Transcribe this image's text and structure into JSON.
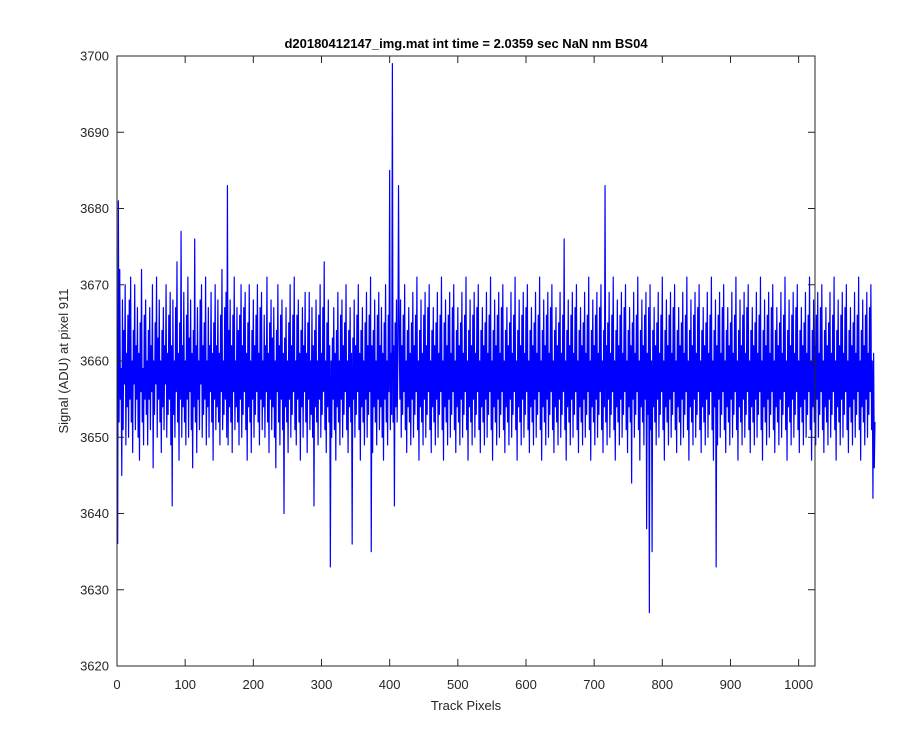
{
  "chart_data": {
    "type": "line",
    "title": "d20180412147_img.mat int time = 2.0359 sec  NaN nm BS04",
    "xlabel": "Track Pixels",
    "ylabel": "Signal (ADU) at pixel 911",
    "xlim": [
      0,
      1024
    ],
    "ylim": [
      3620,
      3700
    ],
    "xticks": [
      0,
      100,
      200,
      300,
      400,
      500,
      600,
      700,
      800,
      900,
      1000
    ],
    "yticks": [
      3620,
      3630,
      3640,
      3650,
      3660,
      3670,
      3680,
      3690,
      3700
    ],
    "grid": false,
    "legend": "none",
    "line_color": "#0000ff",
    "series": [
      {
        "x_start": 1,
        "x_step": 1,
        "values": [
          3636,
          3681,
          3652,
          3672,
          3655,
          3659,
          3645,
          3668,
          3651,
          3664,
          3657,
          3670,
          3649,
          3661,
          3654,
          3666,
          3650,
          3668,
          3655,
          3671,
          3652,
          3660,
          3648,
          3664,
          3657,
          3670,
          3651,
          3662,
          3655,
          3667,
          3650,
          3661,
          3647,
          3665,
          3656,
          3672,
          3652,
          3659,
          3649,
          3666,
          3655,
          3668,
          3653,
          3660,
          3649,
          3664,
          3655,
          3667,
          3651,
          3662,
          3656,
          3670,
          3646,
          3660,
          3653,
          3665,
          3657,
          3671,
          3650,
          3663,
          3655,
          3668,
          3652,
          3660,
          3648,
          3664,
          3654,
          3667,
          3651,
          3662,
          3657,
          3670,
          3650,
          3661,
          3653,
          3666,
          3655,
          3669,
          3649,
          3662,
          3641,
          3668,
          3653,
          3660,
          3650,
          3667,
          3656,
          3673,
          3652,
          3661,
          3647,
          3665,
          3655,
          3677,
          3650,
          3662,
          3654,
          3669,
          3652,
          3660,
          3649,
          3666,
          3655,
          3671,
          3650,
          3663,
          3656,
          3668,
          3651,
          3661,
          3646,
          3664,
          3654,
          3676,
          3652,
          3662,
          3648,
          3667,
          3655,
          3660,
          3651,
          3668,
          3657,
          3670,
          3650,
          3662,
          3653,
          3665,
          3655,
          3671,
          3649,
          3660,
          3654,
          3667,
          3650,
          3662,
          3656,
          3669,
          3652,
          3661,
          3647,
          3665,
          3655,
          3670,
          3651,
          3662,
          3654,
          3668,
          3652,
          3661,
          3649,
          3666,
          3656,
          3672,
          3651,
          3660,
          3653,
          3667,
          3655,
          3669,
          3650,
          3683,
          3649,
          3664,
          3654,
          3668,
          3652,
          3662,
          3648,
          3666,
          3656,
          3671,
          3651,
          3660,
          3654,
          3667,
          3652,
          3664,
          3649,
          3666,
          3655,
          3670,
          3650,
          3662,
          3653,
          3667,
          3656,
          3669,
          3651,
          3661,
          3647,
          3665,
          3654,
          3670,
          3652,
          3660,
          3648,
          3664,
          3655,
          3668,
          3650,
          3662,
          3653,
          3666,
          3656,
          3670,
          3652,
          3661,
          3649,
          3667,
          3655,
          3669,
          3651,
          3660,
          3654,
          3666,
          3650,
          3662,
          3656,
          3671,
          3652,
          3661,
          3648,
          3665,
          3655,
          3668,
          3651,
          3663,
          3654,
          3667,
          3650,
          3660,
          3646,
          3664,
          3656,
          3670,
          3652,
          3662,
          3649,
          3666,
          3655,
          3668,
          3651,
          3661,
          3640,
          3663,
          3654,
          3667,
          3652,
          3660,
          3648,
          3665,
          3655,
          3670,
          3650,
          3662,
          3653,
          3666,
          3656,
          3671,
          3651,
          3660,
          3649,
          3666,
          3655,
          3668,
          3652,
          3661,
          3647,
          3664,
          3654,
          3667,
          3650,
          3662,
          3656,
          3669,
          3652,
          3661,
          3648,
          3665,
          3655,
          3669,
          3651,
          3660,
          3653,
          3667,
          3650,
          3662,
          3641,
          3664,
          3654,
          3668,
          3652,
          3660,
          3649,
          3666,
          3655,
          3670,
          3650,
          3661,
          3653,
          3667,
          3656,
          3673,
          3651,
          3660,
          3648,
          3665,
          3654,
          3668,
          3652,
          3662,
          3633,
          3660,
          3650,
          3663,
          3655,
          3667,
          3651,
          3661,
          3647,
          3664,
          3654,
          3669,
          3652,
          3660,
          3649,
          3666,
          3655,
          3668,
          3650,
          3662,
          3653,
          3665,
          3656,
          3670,
          3651,
          3660,
          3648,
          3664,
          3654,
          3667,
          3652,
          3661,
          3636,
          3663,
          3655,
          3668,
          3650,
          3662,
          3653,
          3666,
          3656,
          3670,
          3651,
          3661,
          3647,
          3664,
          3654,
          3667,
          3652,
          3660,
          3649,
          3665,
          3655,
          3669,
          3650,
          3662,
          3653,
          3666,
          3656,
          3671,
          3635,
          3662,
          3648,
          3664,
          3654,
          3668,
          3652,
          3660,
          3649,
          3666,
          3655,
          3669,
          3651,
          3662,
          3654,
          3667,
          3650,
          3661,
          3647,
          3665,
          3655,
          3670,
          3652,
          3660,
          3649,
          3666,
          3656,
          3685,
          3651,
          3661,
          3653,
          3699,
          3652,
          3662,
          3641,
          3665,
          3654,
          3668,
          3652,
          3660,
          3683,
          3664,
          3655,
          3668,
          3650,
          3662,
          3653,
          3666,
          3656,
          3670,
          3651,
          3660,
          3648,
          3664,
          3654,
          3667,
          3652,
          3661,
          3649,
          3665,
          3655,
          3669,
          3650,
          3662,
          3653,
          3666,
          3656,
          3671,
          3651,
          3660,
          3647,
          3664,
          3654,
          3668,
          3652,
          3661,
          3649,
          3666,
          3655,
          3669,
          3650,
          3662,
          3653,
          3667,
          3656,
          3670,
          3651,
          3660,
          3648,
          3664,
          3654,
          3667,
          3652,
          3662,
          3649,
          3665,
          3655,
          3669,
          3650,
          3661,
          3653,
          3666,
          3656,
          3671,
          3651,
          3660,
          3647,
          3665,
          3654,
          3668,
          3652,
          3662,
          3649,
          3666,
          3655,
          3669,
          3650,
          3661,
          3653,
          3667,
          3656,
          3670,
          3651,
          3660,
          3648,
          3664,
          3654,
          3667,
          3652,
          3662,
          3649,
          3665,
          3655,
          3669,
          3650,
          3661,
          3653,
          3666,
          3656,
          3671,
          3651,
          3660,
          3647,
          3664,
          3654,
          3668,
          3652,
          3662,
          3649,
          3666,
          3655,
          3669,
          3650,
          3661,
          3653,
          3667,
          3656,
          3670,
          3651,
          3660,
          3648,
          3664,
          3654,
          3667,
          3652,
          3662,
          3649,
          3665,
          3655,
          3669,
          3650,
          3661,
          3653,
          3666,
          3656,
          3671,
          3651,
          3660,
          3647,
          3664,
          3654,
          3668,
          3652,
          3662,
          3649,
          3666,
          3655,
          3669,
          3650,
          3661,
          3653,
          3667,
          3656,
          3670,
          3651,
          3660,
          3648,
          3664,
          3654,
          3667,
          3652,
          3662,
          3649,
          3665,
          3655,
          3669,
          3650,
          3661,
          3653,
          3666,
          3656,
          3671,
          3651,
          3660,
          3647,
          3664,
          3654,
          3668,
          3652,
          3662,
          3649,
          3666,
          3655,
          3669,
          3650,
          3661,
          3653,
          3667,
          3656,
          3670,
          3651,
          3660,
          3648,
          3664,
          3654,
          3667,
          3652,
          3662,
          3649,
          3665,
          3655,
          3669,
          3650,
          3661,
          3653,
          3666,
          3656,
          3671,
          3651,
          3660,
          3647,
          3664,
          3654,
          3668,
          3652,
          3662,
          3649,
          3666,
          3655,
          3669,
          3650,
          3661,
          3653,
          3667,
          3656,
          3670,
          3651,
          3660,
          3648,
          3664,
          3654,
          3667,
          3652,
          3662,
          3649,
          3665,
          3655,
          3669,
          3650,
          3661,
          3653,
          3666,
          3656,
          3676,
          3651,
          3660,
          3647,
          3664,
          3654,
          3668,
          3652,
          3662,
          3649,
          3666,
          3655,
          3669,
          3650,
          3661,
          3653,
          3667,
          3656,
          3670,
          3651,
          3660,
          3648,
          3664,
          3654,
          3667,
          3652,
          3662,
          3649,
          3665,
          3655,
          3669,
          3650,
          3661,
          3653,
          3666,
          3656,
          3671,
          3651,
          3660,
          3647,
          3664,
          3654,
          3668,
          3652,
          3662,
          3649,
          3666,
          3655,
          3669,
          3650,
          3661,
          3653,
          3667,
          3656,
          3670,
          3651,
          3660,
          3648,
          3664,
          3654,
          3683,
          3652,
          3662,
          3649,
          3665,
          3655,
          3669,
          3650,
          3661,
          3653,
          3666,
          3656,
          3671,
          3651,
          3660,
          3647,
          3664,
          3654,
          3668,
          3652,
          3662,
          3649,
          3666,
          3655,
          3669,
          3650,
          3661,
          3653,
          3667,
          3656,
          3670,
          3651,
          3660,
          3648,
          3664,
          3654,
          3667,
          3652,
          3662,
          3644,
          3665,
          3655,
          3669,
          3650,
          3661,
          3653,
          3666,
          3656,
          3671,
          3651,
          3660,
          3647,
          3664,
          3654,
          3668,
          3652,
          3662,
          3649,
          3666,
          3655,
          3669,
          3638,
          3661,
          3653,
          3667,
          3627,
          3670,
          3651,
          3660,
          3635,
          3664,
          3654,
          3667,
          3652,
          3662,
          3649,
          3665,
          3655,
          3669,
          3650,
          3661,
          3653,
          3666,
          3656,
          3671,
          3651,
          3660,
          3647,
          3664,
          3654,
          3668,
          3652,
          3662,
          3649,
          3666,
          3655,
          3669,
          3650,
          3661,
          3653,
          3667,
          3656,
          3670,
          3651,
          3660,
          3648,
          3664,
          3654,
          3667,
          3652,
          3662,
          3649,
          3665,
          3655,
          3669,
          3650,
          3661,
          3653,
          3666,
          3656,
          3671,
          3651,
          3660,
          3647,
          3664,
          3654,
          3668,
          3652,
          3662,
          3649,
          3666,
          3655,
          3669,
          3650,
          3661,
          3653,
          3667,
          3656,
          3670,
          3651,
          3660,
          3648,
          3664,
          3654,
          3667,
          3652,
          3662,
          3649,
          3665,
          3655,
          3669,
          3650,
          3661,
          3653,
          3666,
          3656,
          3671,
          3651,
          3660,
          3647,
          3664,
          3654,
          3668,
          3633,
          3662,
          3649,
          3666,
          3655,
          3669,
          3650,
          3661,
          3653,
          3667,
          3656,
          3670,
          3651,
          3660,
          3648,
          3664,
          3654,
          3667,
          3652,
          3662,
          3649,
          3665,
          3655,
          3669,
          3650,
          3661,
          3653,
          3666,
          3656,
          3671,
          3651,
          3660,
          3647,
          3664,
          3654,
          3668,
          3652,
          3662,
          3649,
          3666,
          3655,
          3669,
          3650,
          3661,
          3653,
          3667,
          3656,
          3670,
          3651,
          3660,
          3648,
          3664,
          3654,
          3667,
          3652,
          3662,
          3649,
          3665,
          3655,
          3669,
          3650,
          3661,
          3653,
          3666,
          3656,
          3671,
          3651,
          3660,
          3647,
          3664,
          3654,
          3668,
          3652,
          3662,
          3649,
          3666,
          3655,
          3669,
          3650,
          3661,
          3653,
          3667,
          3656,
          3670,
          3651,
          3660,
          3648,
          3664,
          3654,
          3667,
          3652,
          3662,
          3649,
          3665,
          3655,
          3669,
          3650,
          3661,
          3653,
          3666,
          3656,
          3671,
          3651,
          3660,
          3647,
          3664,
          3654,
          3668,
          3652,
          3662,
          3649,
          3666,
          3655,
          3669,
          3650,
          3661,
          3653,
          3667,
          3656,
          3670,
          3651,
          3660,
          3648,
          3664,
          3654,
          3667,
          3652,
          3662,
          3649,
          3665,
          3655,
          3669,
          3650,
          3661,
          3653,
          3666,
          3656,
          3671,
          3651,
          3660,
          3647,
          3664,
          3654,
          3668,
          3652,
          3662,
          3649,
          3666,
          3655,
          3669,
          3650,
          3661,
          3653,
          3667,
          3656,
          3670,
          3651,
          3660,
          3648,
          3664,
          3654,
          3667,
          3652,
          3662,
          3649,
          3665,
          3655,
          3669,
          3650,
          3661,
          3653,
          3666,
          3656,
          3671,
          3651,
          3660,
          3647,
          3664,
          3654,
          3668,
          3652,
          3662,
          3649,
          3666,
          3655,
          3669,
          3650,
          3661,
          3653,
          3667,
          3656,
          3670,
          3651,
          3660,
          3648,
          3664,
          3654,
          3667,
          3652,
          3662,
          3649,
          3665,
          3655,
          3669,
          3650,
          3661,
          3653,
          3666,
          3656,
          3671,
          3651,
          3660,
          3647,
          3664,
          3654,
          3668,
          3652,
          3662,
          3649,
          3666,
          3655,
          3669,
          3650,
          3661,
          3653,
          3667,
          3656,
          3670,
          3651,
          3660,
          3642,
          3661,
          3646,
          3652
        ]
      }
    ]
  }
}
